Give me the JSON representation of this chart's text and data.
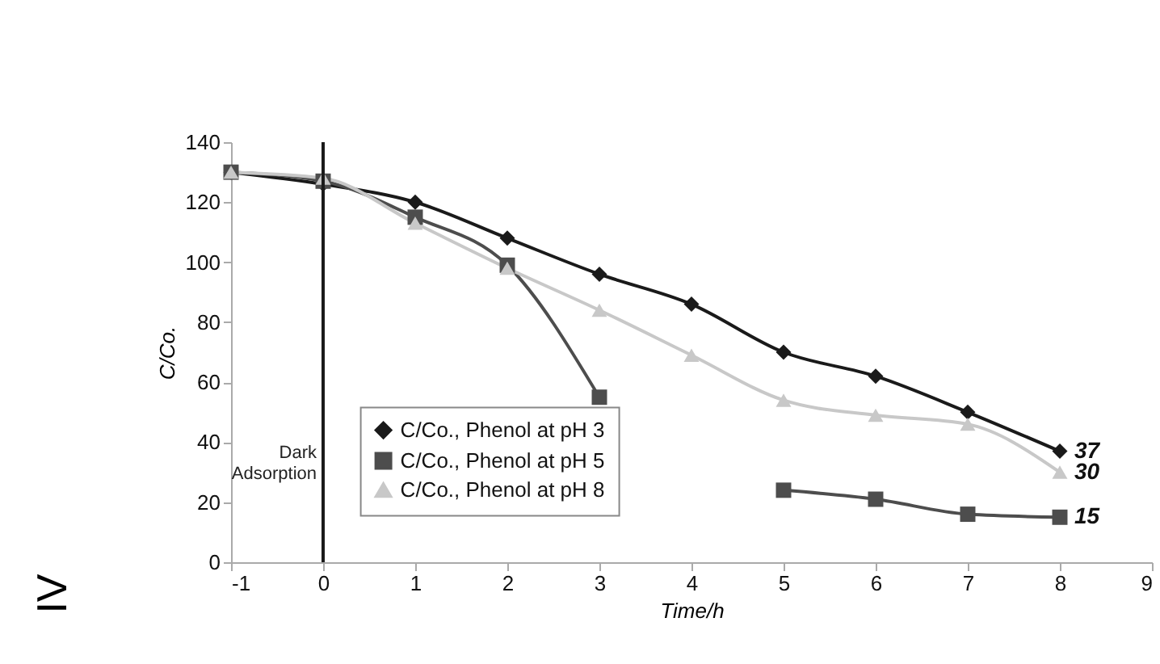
{
  "chart_data": {
    "type": "line",
    "xlabel": "Time/h",
    "ylabel": "C/Co.",
    "x": [
      -1,
      0,
      1,
      2,
      3,
      4,
      5,
      6,
      7,
      8
    ],
    "series": [
      {
        "name": "C/Co., Phenol at pH 3",
        "color": "#1a1a1a",
        "marker": "diamond",
        "values": [
          130,
          126,
          120,
          108,
          96,
          86,
          70,
          62,
          50,
          37
        ],
        "value_labels": [
          null,
          null,
          null,
          null,
          null,
          null,
          null,
          null,
          null,
          "37"
        ]
      },
      {
        "name": "C/Co., Phenol at pH 5",
        "color": "#4d4d4d",
        "marker": "square",
        "values": [
          130,
          127,
          115,
          99,
          55,
          null,
          24,
          21,
          16,
          15
        ],
        "value_labels": [
          null,
          null,
          null,
          null,
          null,
          null,
          null,
          null,
          null,
          "15"
        ]
      },
      {
        "name": "C/Co., Phenol at pH 8",
        "color": "#c8c8c8",
        "marker": "triangle",
        "values": [
          130,
          128,
          113,
          98,
          84,
          69,
          54,
          49,
          46,
          30
        ],
        "value_labels": [
          null,
          null,
          null,
          null,
          null,
          null,
          null,
          null,
          null,
          "30"
        ]
      }
    ],
    "xlim": [
      -1,
      9
    ],
    "xticks": [
      -1,
      0,
      1,
      2,
      3,
      4,
      5,
      6,
      7,
      8,
      9
    ],
    "ylim": [
      0,
      140
    ],
    "yticks": [
      0,
      20,
      40,
      60,
      80,
      100,
      120,
      140
    ],
    "ref_lines": [
      {
        "axis": "x",
        "value": 0,
        "label": "Dark Adsorption",
        "color": "#1a1a1a"
      }
    ],
    "annotations": [
      "IV"
    ],
    "legend": "bottom left",
    "grid": false
  }
}
